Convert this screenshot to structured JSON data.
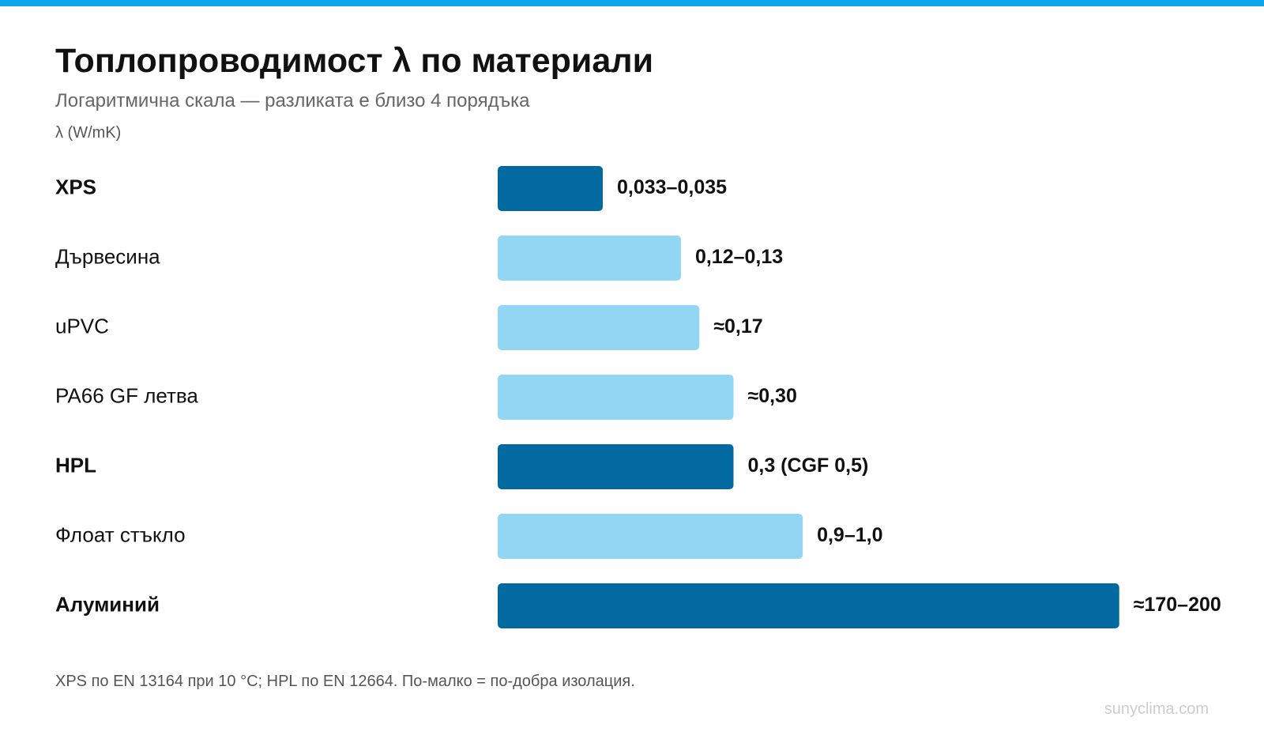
{
  "colors": {
    "accent_bar": "#0ea5e9",
    "bar_highlight": "#0369a1",
    "bar_normal": "#93d6f4",
    "text_dark": "#111111",
    "text_muted": "#666666"
  },
  "header": {
    "title": "Топлопроводимост λ по материали",
    "subtitle": "Логаритмична скала — разликата е близо 4 порядъка",
    "unit": "λ (W/mK)"
  },
  "footer": {
    "note": "XPS по EN 13164 при 10 °C; HPL по EN 12664. По-малко = по-добра изолация.",
    "watermark": "sunyclima.com"
  },
  "chart_data": {
    "type": "bar",
    "orientation": "horizontal",
    "scale": "log",
    "title": "Топлопроводимост λ по материали",
    "subtitle": "Логаритмична скала — разликата е близо 4 порядъка",
    "xlabel": "λ (W/mK)",
    "ylabel": "",
    "grid": false,
    "legend": "none",
    "categories": [
      "XPS",
      "Дървесина",
      "uPVC",
      "PA66 GF летва",
      "HPL",
      "Флоат стъкло",
      "Алуминий"
    ],
    "values": [
      0.034,
      0.125,
      0.17,
      0.3,
      0.3,
      0.95,
      185
    ],
    "value_labels": [
      "0,033–0,035",
      "0,12–0,13",
      "≈0,17",
      "≈0,30",
      "0,3 (CGF 0,5)",
      "0,9–1,0",
      "≈170–200"
    ],
    "highlighted": [
      true,
      false,
      false,
      false,
      true,
      false,
      true
    ],
    "xlim": [
      0.01,
      1000
    ]
  }
}
